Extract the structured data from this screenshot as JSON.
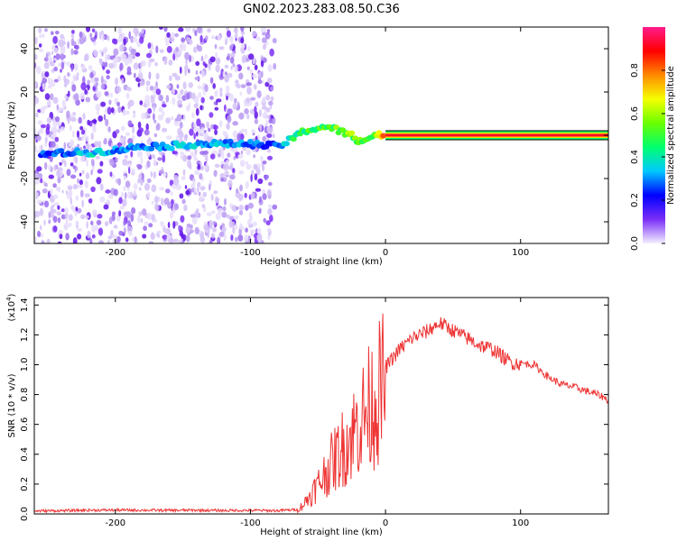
{
  "figure": {
    "title": "GN02.2023.283.08.50.C36"
  },
  "chart_data": [
    {
      "type": "heatmap",
      "title": "",
      "xlabel": "Height of straight line (km)",
      "ylabel": "Frequency (Hz)",
      "xlim": [
        -260,
        165
      ],
      "ylim": [
        -50,
        50
      ],
      "x_ticks": [
        "-200",
        "-100",
        "0",
        "100"
      ],
      "y_ticks": [
        "-40",
        "-20",
        "0",
        "20",
        "40"
      ],
      "colorbar": {
        "label": "Normalized spectral amplitude",
        "range": [
          0,
          1
        ],
        "ticks": [
          "0.0",
          "0.2",
          "0.4",
          "0.6",
          "0.8"
        ],
        "colors": [
          "#f4f0ff",
          "#7b2ff7",
          "#0000ff",
          "#00c8ff",
          "#00ff70",
          "#6aff00",
          "#f5ff00",
          "#ff8a00",
          "#ff0000",
          "#ff1a8c"
        ]
      },
      "noise_region_x": [
        -260,
        -82
      ],
      "trace": [
        {
          "x": -255,
          "y": -9,
          "amp": 0.25
        },
        {
          "x": -235,
          "y": -8,
          "amp": 0.28
        },
        {
          "x": -220,
          "y": -8,
          "amp": 0.35
        },
        {
          "x": -200,
          "y": -7,
          "amp": 0.3
        },
        {
          "x": -180,
          "y": -5,
          "amp": 0.28
        },
        {
          "x": -160,
          "y": -5,
          "amp": 0.32
        },
        {
          "x": -140,
          "y": -4,
          "amp": 0.35
        },
        {
          "x": -120,
          "y": -4,
          "amp": 0.3
        },
        {
          "x": -100,
          "y": -4,
          "amp": 0.3
        },
        {
          "x": -85,
          "y": -5,
          "amp": 0.2
        },
        {
          "x": -75,
          "y": -4,
          "amp": 0.35
        },
        {
          "x": -68,
          "y": -1,
          "amp": 0.45
        },
        {
          "x": -60,
          "y": 2,
          "amp": 0.45
        },
        {
          "x": -52,
          "y": 3,
          "amp": 0.5
        },
        {
          "x": -45,
          "y": 4,
          "amp": 0.48
        },
        {
          "x": -38,
          "y": 3,
          "amp": 0.5
        },
        {
          "x": -30,
          "y": 1,
          "amp": 0.55
        },
        {
          "x": -25,
          "y": 0,
          "amp": 0.55
        },
        {
          "x": -20,
          "y": -3,
          "amp": 0.5
        },
        {
          "x": -15,
          "y": -2,
          "amp": 0.55
        },
        {
          "x": -8,
          "y": 0,
          "amp": 0.6
        },
        {
          "x": 0,
          "y": 0,
          "amp": 0.8
        },
        {
          "x": 40,
          "y": 0,
          "amp": 0.85
        },
        {
          "x": 80,
          "y": 0,
          "amp": 0.9
        },
        {
          "x": 120,
          "y": 0,
          "amp": 0.95
        },
        {
          "x": 165,
          "y": 0,
          "amp": 0.95
        }
      ]
    },
    {
      "type": "line",
      "title": "",
      "xlabel": "Height of straight line (km)",
      "ylabel": "SNR (10 * v/v)",
      "y_multiplier": "(x10",
      "y_multiplier_exp": "4",
      "y_multiplier_close": ")",
      "xlim": [
        -260,
        165
      ],
      "ylim": [
        0,
        14500
      ],
      "x_ticks": [
        "-200",
        "-100",
        "0",
        "100"
      ],
      "y_ticks": [
        "0.0",
        "0.2",
        "0.4",
        "0.6",
        "0.8",
        "1.0",
        "1.2",
        "1.4"
      ],
      "color": "#ee3333",
      "series": [
        {
          "x": [
            -260,
            -240,
            -220,
            -200,
            -180,
            -160,
            -140,
            -120,
            -100,
            -80,
            -65,
            -60,
            -55,
            -50,
            -45,
            -40,
            -35,
            -30,
            -25,
            -20,
            -15,
            -10,
            -5,
            0,
            10,
            20,
            30,
            40,
            50,
            60,
            70,
            80,
            90,
            95,
            100,
            110,
            120,
            130,
            140,
            150,
            160,
            165
          ],
          "values": [
            200,
            220,
            250,
            260,
            250,
            240,
            250,
            230,
            240,
            220,
            300,
            800,
            1500,
            2200,
            3000,
            3800,
            4500,
            5200,
            5900,
            6800,
            7500,
            8300,
            9000,
            9800,
            11000,
            11800,
            12200,
            12800,
            12300,
            11800,
            11300,
            11000,
            10300,
            10100,
            10100,
            10000,
            9200,
            8700,
            8500,
            8200,
            7900,
            7600
          ]
        }
      ]
    }
  ]
}
